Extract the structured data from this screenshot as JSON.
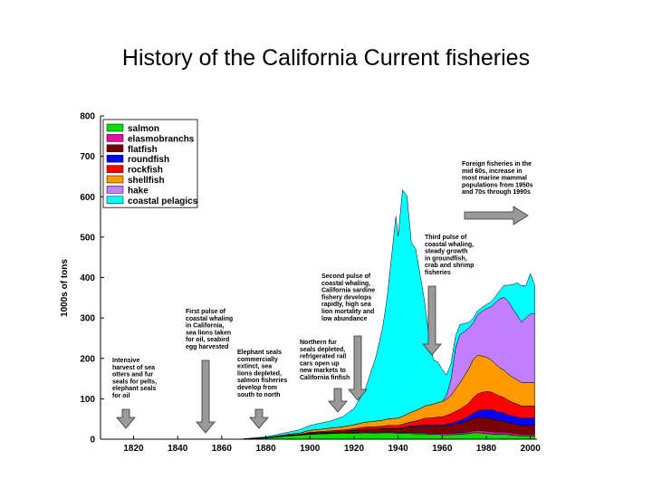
{
  "title": "History of the California Current fisheries",
  "chart_data": {
    "type": "area",
    "stacked": true,
    "ylabel": "1000s of tons",
    "xlim": [
      1805,
      2003
    ],
    "ylim": [
      0,
      800
    ],
    "x_ticks": [
      1820,
      1840,
      1860,
      1880,
      1900,
      1920,
      1940,
      1960,
      1980,
      2000
    ],
    "y_ticks": [
      0,
      100,
      200,
      300,
      400,
      500,
      600,
      700,
      800
    ],
    "legend_position": "top-left",
    "x": [
      1870,
      1880,
      1890,
      1895,
      1900,
      1905,
      1910,
      1915,
      1920,
      1925,
      1930,
      1933,
      1935,
      1937,
      1939,
      1940,
      1942,
      1944,
      1946,
      1948,
      1950,
      1952,
      1954,
      1956,
      1958,
      1960,
      1962,
      1964,
      1966,
      1968,
      1970,
      1972,
      1974,
      1976,
      1978,
      1980,
      1982,
      1984,
      1986,
      1988,
      1990,
      1992,
      1994,
      1996,
      1998,
      2000,
      2002
    ],
    "series": [
      {
        "name": "salmon",
        "color": "#00e000",
        "values": [
          1,
          3,
          8,
          10,
          12,
          13,
          14,
          15,
          14,
          16,
          15,
          16,
          16,
          16,
          15,
          15,
          14,
          14,
          14,
          13,
          13,
          13,
          12,
          12,
          12,
          11,
          11,
          11,
          12,
          12,
          13,
          14,
          16,
          16,
          15,
          14,
          13,
          12,
          12,
          12,
          11,
          10,
          9,
          8,
          8,
          8,
          8
        ]
      },
      {
        "name": "elasmobranchs",
        "color": "#e0109a",
        "values": [
          0,
          0,
          0,
          0,
          1,
          1,
          1,
          1,
          2,
          2,
          2,
          2,
          2,
          2,
          2,
          2,
          3,
          3,
          3,
          3,
          3,
          3,
          3,
          3,
          3,
          3,
          4,
          4,
          4,
          4,
          4,
          4,
          5,
          6,
          6,
          6,
          6,
          6,
          6,
          6,
          5,
          5,
          5,
          4,
          4,
          4,
          4
        ]
      },
      {
        "name": "flatfish",
        "color": "#7a0000",
        "values": [
          0,
          0,
          1,
          1,
          2,
          3,
          3,
          4,
          5,
          6,
          7,
          7,
          8,
          8,
          9,
          9,
          10,
          12,
          14,
          15,
          16,
          17,
          17,
          17,
          18,
          18,
          19,
          20,
          22,
          24,
          26,
          28,
          30,
          32,
          33,
          33,
          32,
          30,
          28,
          27,
          25,
          24,
          23,
          22,
          22,
          22,
          22
        ]
      },
      {
        "name": "roundfish",
        "color": "#0000ff",
        "values": [
          0,
          0,
          0,
          0,
          0,
          0,
          0,
          0,
          1,
          1,
          1,
          1,
          1,
          1,
          1,
          1,
          2,
          2,
          2,
          2,
          2,
          3,
          3,
          3,
          3,
          3,
          3,
          4,
          5,
          6,
          8,
          10,
          13,
          16,
          18,
          20,
          22,
          22,
          21,
          20,
          19,
          18,
          18,
          18,
          18,
          18,
          18
        ]
      },
      {
        "name": "rockfish",
        "color": "#ff0000",
        "values": [
          0,
          0,
          1,
          1,
          2,
          2,
          3,
          3,
          4,
          5,
          6,
          6,
          7,
          7,
          7,
          7,
          8,
          9,
          10,
          12,
          14,
          16,
          17,
          18,
          19,
          20,
          22,
          24,
          26,
          28,
          30,
          33,
          38,
          42,
          44,
          45,
          44,
          42,
          40,
          38,
          36,
          34,
          32,
          30,
          30,
          30,
          30
        ]
      },
      {
        "name": "shellfish",
        "color": "#ff9900",
        "values": [
          0,
          1,
          2,
          3,
          5,
          6,
          7,
          8,
          10,
          12,
          14,
          15,
          16,
          17,
          18,
          18,
          20,
          22,
          24,
          26,
          28,
          30,
          32,
          34,
          36,
          38,
          40,
          45,
          55,
          65,
          75,
          85,
          95,
          95,
          90,
          85,
          80,
          75,
          70,
          68,
          65,
          62,
          60,
          58,
          58,
          58,
          58
        ]
      },
      {
        "name": "hake",
        "color": "#c080ff",
        "values": [
          0,
          0,
          0,
          0,
          0,
          0,
          0,
          0,
          0,
          0,
          0,
          0,
          0,
          0,
          0,
          0,
          0,
          0,
          0,
          0,
          0,
          0,
          0,
          0,
          0,
          0,
          10,
          40,
          100,
          120,
          110,
          100,
          90,
          100,
          110,
          120,
          130,
          150,
          170,
          180,
          180,
          170,
          160,
          150,
          160,
          170,
          170
        ]
      },
      {
        "name": "coastal pelagics",
        "color": "#00ffff",
        "values": [
          0,
          2,
          5,
          8,
          12,
          15,
          18,
          25,
          40,
          80,
          160,
          230,
          300,
          400,
          500,
          450,
          560,
          540,
          420,
          400,
          330,
          260,
          170,
          110,
          100,
          80,
          50,
          40,
          30,
          25,
          20,
          15,
          12,
          10,
          10,
          10,
          12,
          15,
          20,
          30,
          40,
          60,
          80,
          90,
          80,
          100,
          70
        ]
      }
    ],
    "annotations": [
      {
        "year": 1815,
        "lines": [
          "Intensive",
          "harvest of  sea",
          "otters and fur",
          "seals for pelts,",
          "elephant seals",
          "for oil"
        ]
      },
      {
        "year": 1855,
        "lines": [
          "First pulse of",
          "coastal whaling",
          "in California,",
          "sea lions taken",
          "for oil, seabird",
          "egg harvested"
        ]
      },
      {
        "year": 1878,
        "lines": [
          "Elephant seals",
          "commercially",
          "extinct, sea",
          "lions depleted,",
          "salmon fisheries",
          "develop from",
          "south to north"
        ]
      },
      {
        "year": 1912,
        "lines": [
          "Northern fur",
          "seals depleted,",
          "refrigerated rail",
          "cars open up",
          "new markets to",
          "California finfish"
        ]
      },
      {
        "year": 1950,
        "lines": [
          "Second pulse of",
          "coastal whaling,",
          "California sardine",
          "fishery develops",
          "rapidly, high sea",
          "lion mortality and",
          "low abundance"
        ]
      },
      {
        "year": 1970,
        "lines": [
          "Third pulse of",
          "coastal whaling,",
          "steady growth",
          "in groundfish,",
          "crab and shrimp",
          "fisheries"
        ]
      },
      {
        "year": 1990,
        "lines": [
          "Foreign fisheries in the",
          "mid 60s, increase in",
          "most marine mammal",
          "populations from 1950s",
          "and 70s through 1990s"
        ]
      }
    ]
  }
}
